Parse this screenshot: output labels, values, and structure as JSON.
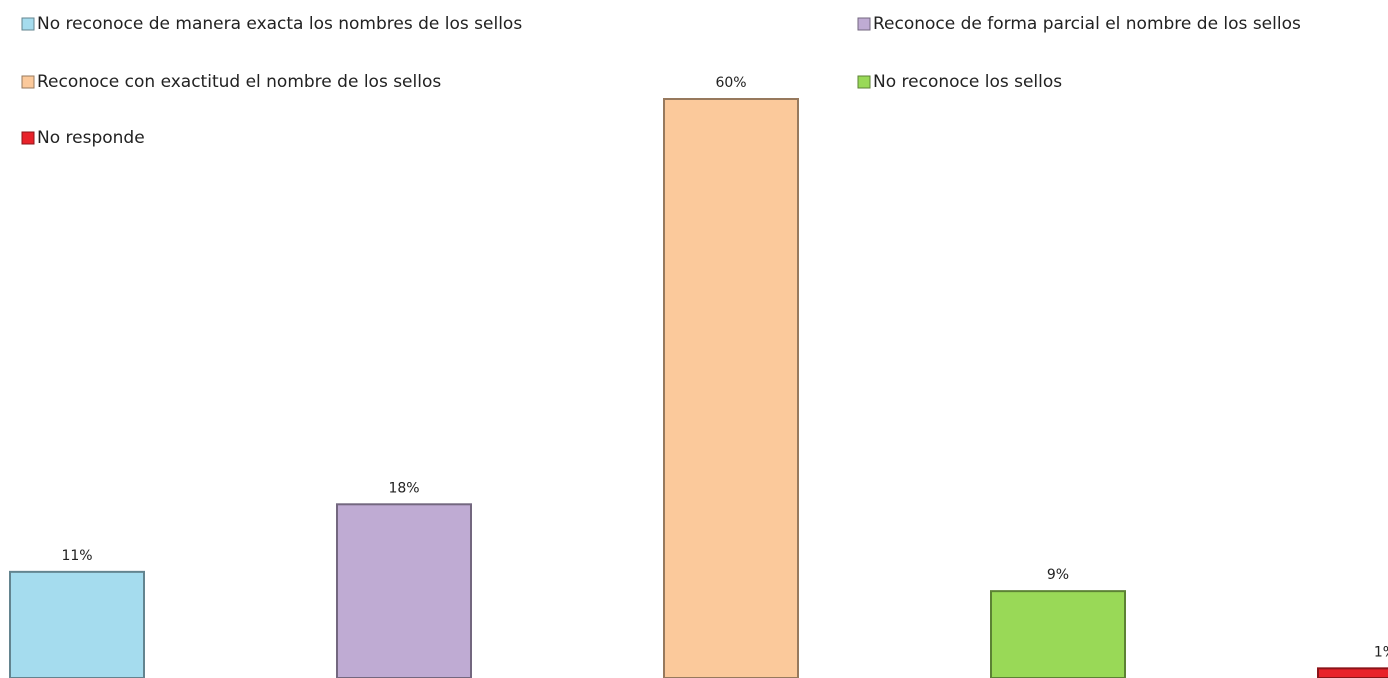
{
  "chart_data": {
    "type": "bar",
    "series": [
      {
        "name": "No reconoce de manera exacta los nombres de los sellos",
        "color": "#a5dcee",
        "values": [
          11
        ],
        "value_labels": [
          "11%"
        ]
      },
      {
        "name": "Reconoce de forma parcial  el nombre de los sellos",
        "color": "#bfabd3",
        "values": [
          18
        ],
        "value_labels": [
          "18%"
        ]
      },
      {
        "name": "Reconoce con exactitud el nombre de los sellos",
        "color": "#fbc99b",
        "values": [
          60
        ],
        "value_labels": [
          "60%"
        ]
      },
      {
        "name": "No reconoce los sellos",
        "color": "#99d957",
        "values": [
          9
        ],
        "value_labels": [
          "9%"
        ]
      },
      {
        "name": "No responde",
        "color": "#e8222a",
        "values": [
          1
        ],
        "value_labels": [
          "1%"
        ]
      }
    ]
  }
}
